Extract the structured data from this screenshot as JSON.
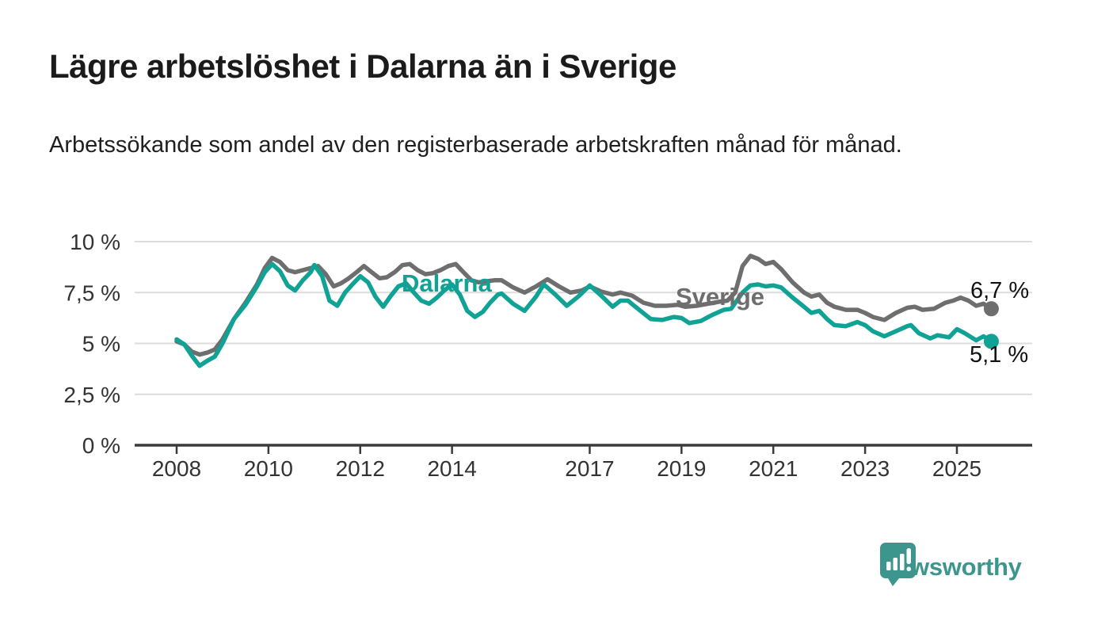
{
  "header": {
    "title": "Lägre arbetslöshet i Dalarna än i Sverige",
    "subtitle": "Arbetssökande som andel av den registerbaserade arbetskraften månad för månad."
  },
  "footer": {
    "brand_name": "Newsworthy",
    "logo_icon": "bar-chart-speech-bubble-icon"
  },
  "colors": {
    "dalarna": "#0fa295",
    "sverige": "#6e6e6e",
    "brand": "#3d968d",
    "grid": "#dcdcdc",
    "axis": "#3b3b3b",
    "tick_text": "#333333",
    "value_text": "#111111"
  },
  "chart_data": {
    "type": "line",
    "title": "Lägre arbetslöshet i Dalarna än i Sverige",
    "subtitle": "Arbetssökande som andel av den registerbaserade arbetskraften månad för månad.",
    "xlabel": "",
    "ylabel": "",
    "x_unit": "year (monthly data)",
    "y_unit": "percent of registered labour force",
    "xlim": [
      2007.1,
      2026.7
    ],
    "ylim": [
      0,
      10.7
    ],
    "grid": "horizontal",
    "legend_position": "inline-on-lines",
    "yticks": [
      {
        "value": 0,
        "label": "0 %"
      },
      {
        "value": 2.5,
        "label": "2,5 %"
      },
      {
        "value": 5,
        "label": "5 %"
      },
      {
        "value": 7.5,
        "label": "7,5 %"
      },
      {
        "value": 10,
        "label": "10 %"
      }
    ],
    "xticks": [
      {
        "value": 2008,
        "label": "2008"
      },
      {
        "value": 2010,
        "label": "2010"
      },
      {
        "value": 2012,
        "label": "2012"
      },
      {
        "value": 2014,
        "label": "2014"
      },
      {
        "value": 2017,
        "label": "2017"
      },
      {
        "value": 2019,
        "label": "2019"
      },
      {
        "value": 2021,
        "label": "2021"
      },
      {
        "value": 2023,
        "label": "2023"
      },
      {
        "value": 2025,
        "label": "2025"
      }
    ],
    "series": [
      {
        "name": "Sverige",
        "color": "#6e6e6e",
        "end_label": "6,7 %",
        "end_value": 6.7,
        "points": [
          [
            2008.0,
            5.1
          ],
          [
            2008.17,
            4.95
          ],
          [
            2008.33,
            4.6
          ],
          [
            2008.5,
            4.45
          ],
          [
            2008.67,
            4.55
          ],
          [
            2008.83,
            4.7
          ],
          [
            2009.0,
            5.2
          ],
          [
            2009.25,
            6.2
          ],
          [
            2009.5,
            7.0
          ],
          [
            2009.75,
            7.9
          ],
          [
            2009.92,
            8.7
          ],
          [
            2010.08,
            9.2
          ],
          [
            2010.25,
            9.0
          ],
          [
            2010.42,
            8.6
          ],
          [
            2010.58,
            8.5
          ],
          [
            2010.75,
            8.6
          ],
          [
            2010.92,
            8.7
          ],
          [
            2011.08,
            8.8
          ],
          [
            2011.25,
            8.4
          ],
          [
            2011.42,
            7.8
          ],
          [
            2011.58,
            7.95
          ],
          [
            2011.75,
            8.2
          ],
          [
            2011.92,
            8.5
          ],
          [
            2012.08,
            8.8
          ],
          [
            2012.25,
            8.5
          ],
          [
            2012.42,
            8.2
          ],
          [
            2012.58,
            8.25
          ],
          [
            2012.75,
            8.5
          ],
          [
            2012.92,
            8.85
          ],
          [
            2013.08,
            8.9
          ],
          [
            2013.25,
            8.6
          ],
          [
            2013.42,
            8.4
          ],
          [
            2013.58,
            8.45
          ],
          [
            2013.75,
            8.6
          ],
          [
            2013.92,
            8.8
          ],
          [
            2014.08,
            8.9
          ],
          [
            2014.25,
            8.5
          ],
          [
            2014.42,
            8.1
          ],
          [
            2014.58,
            8.0
          ],
          [
            2014.75,
            8.05
          ],
          [
            2014.92,
            8.1
          ],
          [
            2015.08,
            8.1
          ],
          [
            2015.33,
            7.75
          ],
          [
            2015.58,
            7.5
          ],
          [
            2015.83,
            7.8
          ],
          [
            2016.08,
            8.15
          ],
          [
            2016.33,
            7.8
          ],
          [
            2016.58,
            7.5
          ],
          [
            2016.83,
            7.6
          ],
          [
            2017.0,
            7.8
          ],
          [
            2017.25,
            7.55
          ],
          [
            2017.5,
            7.4
          ],
          [
            2017.67,
            7.5
          ],
          [
            2017.92,
            7.35
          ],
          [
            2018.17,
            7.0
          ],
          [
            2018.42,
            6.85
          ],
          [
            2018.67,
            6.85
          ],
          [
            2018.92,
            6.9
          ],
          [
            2019.08,
            6.8
          ],
          [
            2019.33,
            6.85
          ],
          [
            2019.58,
            6.95
          ],
          [
            2019.83,
            7.05
          ],
          [
            2020.0,
            7.1
          ],
          [
            2020.17,
            7.5
          ],
          [
            2020.33,
            8.8
          ],
          [
            2020.5,
            9.3
          ],
          [
            2020.67,
            9.15
          ],
          [
            2020.83,
            8.9
          ],
          [
            2021.0,
            9.0
          ],
          [
            2021.17,
            8.65
          ],
          [
            2021.42,
            8.0
          ],
          [
            2021.67,
            7.5
          ],
          [
            2021.83,
            7.3
          ],
          [
            2022.0,
            7.4
          ],
          [
            2022.17,
            7.0
          ],
          [
            2022.33,
            6.8
          ],
          [
            2022.58,
            6.65
          ],
          [
            2022.83,
            6.65
          ],
          [
            2023.0,
            6.5
          ],
          [
            2023.17,
            6.3
          ],
          [
            2023.42,
            6.15
          ],
          [
            2023.67,
            6.5
          ],
          [
            2023.92,
            6.75
          ],
          [
            2024.08,
            6.8
          ],
          [
            2024.25,
            6.65
          ],
          [
            2024.5,
            6.7
          ],
          [
            2024.75,
            7.0
          ],
          [
            2024.92,
            7.1
          ],
          [
            2025.08,
            7.25
          ],
          [
            2025.25,
            7.1
          ],
          [
            2025.42,
            6.85
          ],
          [
            2025.58,
            6.95
          ],
          [
            2025.75,
            6.7
          ]
        ]
      },
      {
        "name": "Dalarna",
        "color": "#0fa295",
        "end_label": "5,1 %",
        "end_value": 5.1,
        "points": [
          [
            2008.0,
            5.2
          ],
          [
            2008.17,
            4.95
          ],
          [
            2008.33,
            4.4
          ],
          [
            2008.5,
            3.9
          ],
          [
            2008.67,
            4.15
          ],
          [
            2008.83,
            4.35
          ],
          [
            2009.0,
            5.0
          ],
          [
            2009.25,
            6.2
          ],
          [
            2009.5,
            6.9
          ],
          [
            2009.75,
            7.8
          ],
          [
            2009.92,
            8.5
          ],
          [
            2010.08,
            8.9
          ],
          [
            2010.25,
            8.55
          ],
          [
            2010.42,
            7.85
          ],
          [
            2010.58,
            7.6
          ],
          [
            2010.75,
            8.1
          ],
          [
            2010.92,
            8.5
          ],
          [
            2011.0,
            8.85
          ],
          [
            2011.17,
            8.3
          ],
          [
            2011.33,
            7.1
          ],
          [
            2011.5,
            6.85
          ],
          [
            2011.67,
            7.5
          ],
          [
            2011.83,
            7.9
          ],
          [
            2012.0,
            8.3
          ],
          [
            2012.17,
            8.0
          ],
          [
            2012.33,
            7.3
          ],
          [
            2012.5,
            6.8
          ],
          [
            2012.67,
            7.35
          ],
          [
            2012.83,
            7.8
          ],
          [
            2013.0,
            7.95
          ],
          [
            2013.17,
            7.5
          ],
          [
            2013.33,
            7.1
          ],
          [
            2013.5,
            6.95
          ],
          [
            2013.67,
            7.25
          ],
          [
            2013.83,
            7.6
          ],
          [
            2014.0,
            7.9
          ],
          [
            2014.17,
            7.4
          ],
          [
            2014.33,
            6.6
          ],
          [
            2014.5,
            6.3
          ],
          [
            2014.67,
            6.55
          ],
          [
            2014.83,
            7.0
          ],
          [
            2015.0,
            7.4
          ],
          [
            2015.08,
            7.45
          ],
          [
            2015.33,
            6.95
          ],
          [
            2015.58,
            6.6
          ],
          [
            2015.83,
            7.3
          ],
          [
            2016.0,
            7.9
          ],
          [
            2016.25,
            7.4
          ],
          [
            2016.5,
            6.85
          ],
          [
            2016.75,
            7.3
          ],
          [
            2017.0,
            7.85
          ],
          [
            2017.25,
            7.35
          ],
          [
            2017.5,
            6.8
          ],
          [
            2017.67,
            7.1
          ],
          [
            2017.83,
            7.1
          ],
          [
            2018.08,
            6.65
          ],
          [
            2018.33,
            6.2
          ],
          [
            2018.58,
            6.15
          ],
          [
            2018.83,
            6.3
          ],
          [
            2019.0,
            6.25
          ],
          [
            2019.17,
            6.0
          ],
          [
            2019.42,
            6.1
          ],
          [
            2019.67,
            6.4
          ],
          [
            2019.92,
            6.65
          ],
          [
            2020.08,
            6.7
          ],
          [
            2020.33,
            7.5
          ],
          [
            2020.5,
            7.85
          ],
          [
            2020.67,
            7.9
          ],
          [
            2020.83,
            7.8
          ],
          [
            2021.0,
            7.85
          ],
          [
            2021.17,
            7.75
          ],
          [
            2021.42,
            7.25
          ],
          [
            2021.67,
            6.8
          ],
          [
            2021.83,
            6.5
          ],
          [
            2022.0,
            6.6
          ],
          [
            2022.17,
            6.2
          ],
          [
            2022.33,
            5.9
          ],
          [
            2022.58,
            5.85
          ],
          [
            2022.83,
            6.05
          ],
          [
            2023.0,
            5.9
          ],
          [
            2023.17,
            5.6
          ],
          [
            2023.42,
            5.35
          ],
          [
            2023.67,
            5.6
          ],
          [
            2023.92,
            5.85
          ],
          [
            2024.0,
            5.9
          ],
          [
            2024.17,
            5.5
          ],
          [
            2024.42,
            5.25
          ],
          [
            2024.58,
            5.4
          ],
          [
            2024.83,
            5.3
          ],
          [
            2025.0,
            5.7
          ],
          [
            2025.17,
            5.5
          ],
          [
            2025.42,
            5.15
          ],
          [
            2025.58,
            5.35
          ],
          [
            2025.75,
            5.1
          ]
        ]
      }
    ]
  }
}
